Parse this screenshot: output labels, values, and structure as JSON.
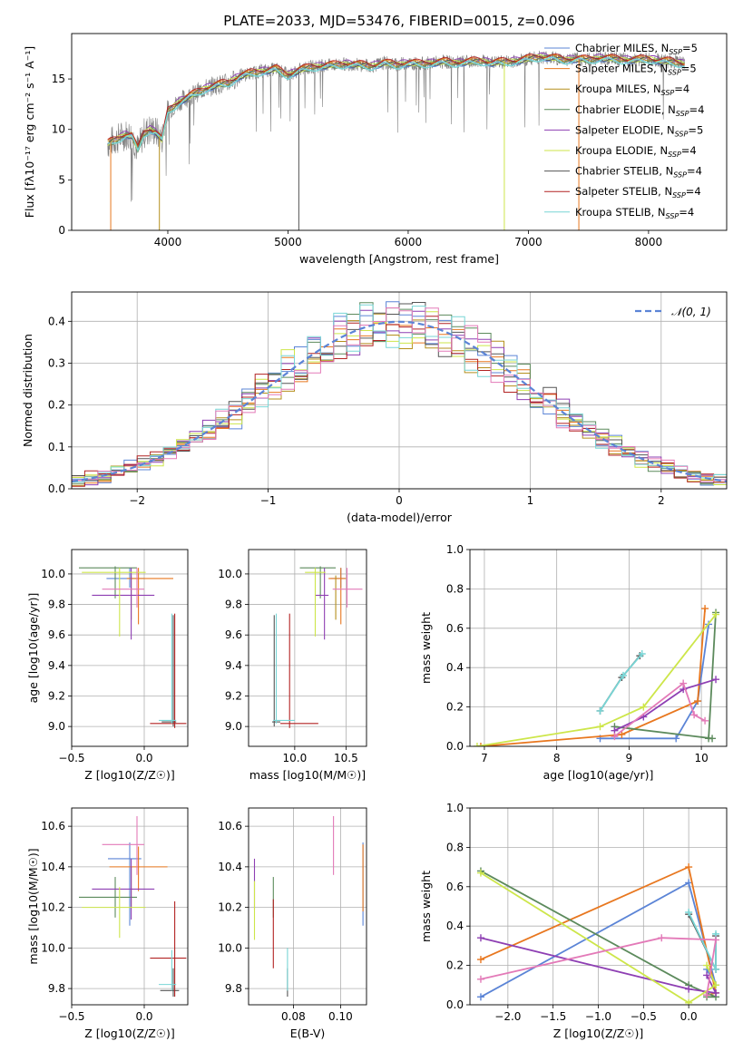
{
  "figure_title": "PLATE=2033, MJD=53476, FIBERID=0015, z=0.096",
  "colors": {
    "Chabrier MILES": "#5b84d6",
    "Salpeter MILES": "#e8771f",
    "Kroupa MILES": "#b58f1c",
    "Chabrier ELODIE": "#5c8a5c",
    "Salpeter ELODIE": "#8e3fb3",
    "Kroupa ELODIE": "#cde64a",
    "Chabrier STELIB": "#555555",
    "Salpeter STELIB": "#b22222",
    "Kroupa STELIB": "#78d6d6",
    "pink": "#e37ab8",
    "observed": "#808080",
    "normal_curve": "#5b84d6"
  },
  "chart_data": [
    {
      "id": "spectrum",
      "type": "line",
      "title": "PLATE=2033, MJD=53476, FIBERID=0015, z=0.096",
      "xlabel": "wavelength [Angstrom, rest frame]",
      "ylabel": "Flux [fλ10⁻¹⁷ erg cm⁻² s⁻¹ A⁻¹]",
      "xlim": [
        3200,
        8650
      ],
      "ylim": [
        0,
        19.5
      ],
      "xticks": [
        4000,
        5000,
        6000,
        7000,
        8000
      ],
      "yticks": [
        0,
        5,
        10,
        15
      ],
      "grid": false,
      "legend_position": "top-right",
      "legend": [
        "Chabrier MILES, N_SSP=5",
        "Salpeter MILES, N_SSP=5",
        "Kroupa MILES, N_SSP=4",
        "Chabrier ELODIE, N_SSP=4",
        "Salpeter ELODIE, N_SSP=5",
        "Kroupa ELODIE, N_SSP=4",
        "Chabrier STELIB, N_SSP=4",
        "Salpeter STELIB, N_SSP=4",
        "Kroupa STELIB, N_SSP=4"
      ],
      "observed": {
        "x": [
          3500,
          3550,
          3600,
          3650,
          3700,
          3750,
          3800,
          3850,
          3900,
          3950,
          4000,
          4100,
          4200,
          4300,
          4400,
          4500,
          4600,
          4700,
          4800,
          4900,
          5000,
          5100,
          5200,
          5300,
          5400,
          5500,
          5600,
          5700,
          5800,
          5900,
          6000,
          6100,
          6200,
          6300,
          6400,
          6500,
          6600,
          6700,
          6800,
          6900,
          7000,
          7100,
          7200,
          7300,
          7400,
          7500,
          7600,
          7700,
          7800,
          7900,
          8000,
          8100,
          8200,
          8300
        ],
        "y": [
          8.6,
          8.9,
          9.2,
          9.5,
          9.4,
          8.0,
          9.6,
          10.0,
          9.8,
          9.0,
          11.8,
          12.8,
          13.4,
          14.0,
          14.4,
          14.6,
          15.3,
          15.6,
          15.8,
          16.0,
          15.4,
          15.9,
          16.2,
          16.3,
          16.4,
          16.5,
          16.4,
          16.3,
          16.6,
          16.4,
          16.6,
          16.5,
          16.6,
          16.7,
          16.6,
          16.7,
          16.8,
          16.6,
          16.7,
          16.8,
          17.0,
          17.2,
          17.1,
          16.9,
          17.0,
          16.9,
          17.1,
          17.0,
          16.9,
          16.9,
          17.0,
          16.8,
          16.7,
          16.5
        ]
      },
      "model_range": [
        3500,
        8300
      ],
      "model_offsets": [
        -0.15,
        0.1,
        0.05,
        -0.1,
        0.15,
        0.0,
        -0.05,
        0.2,
        -0.2
      ],
      "dropouts": [
        {
          "x": 3525,
          "series": "Salpeter MILES"
        },
        {
          "x": 3930,
          "series": "Kroupa MILES"
        },
        {
          "x": 5090,
          "series": "Chabrier STELIB"
        },
        {
          "x": 6800,
          "series": "Kroupa ELODIE"
        },
        {
          "x": 7420,
          "series": "Salpeter MILES"
        }
      ]
    },
    {
      "id": "residuals",
      "type": "histogram",
      "xlabel": "(data-model)/error",
      "ylabel": "Normed distribution",
      "xlim": [
        -2.5,
        2.5
      ],
      "ylim": [
        0,
        0.47
      ],
      "xticks": [
        -2,
        -1,
        0,
        1,
        2
      ],
      "yticks": [
        0.0,
        0.1,
        0.2,
        0.3,
        0.4
      ],
      "grid": true,
      "legend_position": "top-right",
      "legend": [
        "𝒩(0, 1)"
      ],
      "normal": {
        "mean": 0,
        "sigma": 1
      },
      "bin_width": 0.1,
      "bin_start": -2.5
    },
    {
      "id": "age_vs_Z",
      "type": "errorbar",
      "xlabel": "Z [log10(Z/Z☉)]",
      "ylabel": "age [log10(age/yr)]",
      "xlim": [
        -0.5,
        0.3
      ],
      "ylim": [
        8.87,
        10.16
      ],
      "xticks": [
        -0.5,
        0.0,
        0.5
      ],
      "yticks": [
        9.0,
        9.2,
        9.4,
        9.6,
        9.8,
        10.0
      ],
      "grid": true,
      "points": [
        {
          "series": "Chabrier MILES",
          "x": -0.1,
          "y": 9.97,
          "ex": [
            0.16,
            0.1
          ],
          "ey": [
            0.06,
            0.07
          ]
        },
        {
          "series": "Salpeter MILES",
          "x": -0.04,
          "y": 9.97,
          "ex": [
            0.08,
            0.24
          ],
          "ey": [
            0.3,
            0.07
          ]
        },
        {
          "series": "Kroupa MILES",
          "x": -0.09,
          "y": 9.85,
          "ex": [
            0,
            0
          ],
          "ey": [
            0.15,
            0.14
          ]
        },
        {
          "series": "Chabrier ELODIE",
          "x": -0.2,
          "y": 10.04,
          "ex": [
            0.25,
            0.15
          ],
          "ey": [
            0.2,
            0.01
          ]
        },
        {
          "series": "Salpeter ELODIE",
          "x": -0.09,
          "y": 9.86,
          "ex": [
            0.27,
            0.16
          ],
          "ey": [
            0.29,
            0.18
          ]
        },
        {
          "series": "Kroupa ELODIE",
          "x": -0.17,
          "y": 10.01,
          "ex": [
            0.26,
            0.18
          ],
          "ey": [
            0.42,
            0.03
          ]
        },
        {
          "series": "Chabrier STELIB",
          "x": 0.2,
          "y": 9.03,
          "ex": [
            0.08,
            0.02
          ],
          "ey": [
            0.03,
            0.7
          ]
        },
        {
          "series": "Salpeter STELIB",
          "x": 0.21,
          "y": 9.02,
          "ex": [
            0.17,
            0.08
          ],
          "ey": [
            0.03,
            0.72
          ]
        },
        {
          "series": "Kroupa STELIB",
          "x": 0.19,
          "y": 9.04,
          "ex": [
            0.09,
            0.03
          ],
          "ey": [
            0.02,
            0.7
          ]
        },
        {
          "series": "pink",
          "x": -0.05,
          "y": 9.9,
          "ex": [
            0.24,
            0.05
          ],
          "ey": [
            0.12,
            0.14
          ]
        }
      ]
    },
    {
      "id": "age_vs_mass",
      "type": "errorbar",
      "xlabel": "mass [log10(M/M☉)]",
      "ylabel": "",
      "xlim": [
        9.55,
        10.7
      ],
      "ylim": [
        8.87,
        10.16
      ],
      "xticks": [
        10.0,
        10.5
      ],
      "yticks": [
        9.0,
        9.2,
        9.4,
        9.6,
        9.8,
        10.0
      ],
      "grid": true,
      "points": [
        {
          "series": "Chabrier MILES",
          "x": 10.45,
          "y": 9.97,
          "ex": [
            0.1,
            0.05
          ],
          "ey": [
            0.06,
            0.07
          ]
        },
        {
          "series": "Salpeter MILES",
          "x": 10.45,
          "y": 9.97,
          "ex": [
            0.12,
            0.05
          ],
          "ey": [
            0.3,
            0.07
          ]
        },
        {
          "series": "Kroupa MILES",
          "x": 10.4,
          "y": 9.85,
          "ex": [
            0,
            0
          ],
          "ey": [
            0.15,
            0.14
          ]
        },
        {
          "series": "Chabrier ELODIE",
          "x": 10.25,
          "y": 10.04,
          "ex": [
            0.2,
            0.15
          ],
          "ey": [
            0.2,
            0.01
          ]
        },
        {
          "series": "Salpeter ELODIE",
          "x": 10.29,
          "y": 9.86,
          "ex": [
            0.09,
            0.04
          ],
          "ey": [
            0.29,
            0.18
          ]
        },
        {
          "series": "Kroupa ELODIE",
          "x": 10.2,
          "y": 10.01,
          "ex": [
            0.1,
            0.1
          ],
          "ey": [
            0.42,
            0.03
          ]
        },
        {
          "series": "Chabrier STELIB",
          "x": 9.8,
          "y": 9.03,
          "ex": [
            0.02,
            0.06
          ],
          "ey": [
            0.03,
            0.7
          ]
        },
        {
          "series": "Salpeter STELIB",
          "x": 9.95,
          "y": 9.02,
          "ex": [
            0.09,
            0.28
          ],
          "ey": [
            0.03,
            0.72
          ]
        },
        {
          "series": "Kroupa STELIB",
          "x": 9.82,
          "y": 9.04,
          "ex": [
            0.03,
            0.18
          ],
          "ey": [
            0.02,
            0.7
          ]
        },
        {
          "series": "pink",
          "x": 10.51,
          "y": 9.9,
          "ex": [
            0.14,
            0.15
          ],
          "ey": [
            0.12,
            0.14
          ]
        }
      ]
    },
    {
      "id": "weight_vs_age",
      "type": "line",
      "xlabel": "age [log10(age/yr)]",
      "ylabel": "mass weight",
      "xlim": [
        6.8,
        10.35
      ],
      "ylim": [
        0,
        1
      ],
      "xticks": [
        7,
        8,
        9,
        10
      ],
      "yticks": [
        0.0,
        0.2,
        0.4,
        0.6,
        0.8,
        1.0
      ],
      "grid": true,
      "series": [
        {
          "name": "Chabrier MILES",
          "x": [
            8.6,
            9.65,
            9.95,
            10.1
          ],
          "y": [
            0.04,
            0.04,
            0.23,
            0.62
          ]
        },
        {
          "name": "Salpeter MILES",
          "x": [
            6.95,
            8.9,
            9.95,
            10.05
          ],
          "y": [
            0.0,
            0.06,
            0.23,
            0.7
          ]
        },
        {
          "name": "Chabrier ELODIE",
          "x": [
            8.8,
            10.15,
            10.1,
            10.2
          ],
          "y": [
            0.1,
            0.04,
            0.04,
            0.68
          ]
        },
        {
          "name": "Salpeter ELODIE",
          "x": [
            8.8,
            9.2,
            9.75,
            10.2
          ],
          "y": [
            0.08,
            0.15,
            0.29,
            0.34
          ]
        },
        {
          "name": "Kroupa ELODIE",
          "x": [
            6.9,
            8.6,
            9.2,
            10.2
          ],
          "y": [
            0.0,
            0.1,
            0.2,
            0.67
          ]
        },
        {
          "name": "Chabrier STELIB",
          "x": [
            8.6,
            8.9,
            9.15
          ],
          "y": [
            0.18,
            0.35,
            0.46
          ]
        },
        {
          "name": "Kroupa STELIB",
          "x": [
            8.6,
            8.92,
            9.18
          ],
          "y": [
            0.18,
            0.36,
            0.47
          ]
        },
        {
          "name": "pink",
          "x": [
            8.8,
            9.75,
            9.9,
            10.05
          ],
          "y": [
            0.05,
            0.32,
            0.16,
            0.13
          ]
        }
      ]
    },
    {
      "id": "mass_vs_Z",
      "type": "errorbar",
      "xlabel": "Z [log10(Z/Z☉)]",
      "ylabel": "mass [log10(M/M☉)]",
      "xlim": [
        -0.5,
        0.3
      ],
      "ylim": [
        9.72,
        10.69
      ],
      "xticks": [
        -0.5,
        0.0
      ],
      "yticks": [
        9.8,
        10.0,
        10.2,
        10.4,
        10.6
      ],
      "grid": true,
      "points": [
        {
          "series": "Chabrier MILES",
          "x": -0.1,
          "y": 10.44,
          "ex": [
            0.15,
            0.08
          ],
          "ey": [
            0.33,
            0.08
          ]
        },
        {
          "series": "Salpeter MILES",
          "x": -0.04,
          "y": 10.4,
          "ex": [
            0.2,
            0.2
          ],
          "ey": [
            0.12,
            0.1
          ]
        },
        {
          "series": "Kroupa MILES",
          "x": -0.09,
          "y": 10.3,
          "ex": [
            0,
            0
          ],
          "ey": [
            0.1,
            0.1
          ]
        },
        {
          "series": "Chabrier ELODIE",
          "x": -0.2,
          "y": 10.25,
          "ex": [
            0.25,
            0.15
          ],
          "ey": [
            0.1,
            0.1
          ]
        },
        {
          "series": "Salpeter ELODIE",
          "x": -0.09,
          "y": 10.29,
          "ex": [
            0.27,
            0.16
          ],
          "ey": [
            0.15,
            0.15
          ]
        },
        {
          "series": "Kroupa ELODIE",
          "x": -0.17,
          "y": 10.2,
          "ex": [
            0.26,
            0.18
          ],
          "ey": [
            0.15,
            0.1
          ]
        },
        {
          "series": "Chabrier STELIB",
          "x": 0.2,
          "y": 9.79,
          "ex": [
            0.09,
            0.04
          ],
          "ey": [
            0.03,
            0.11
          ]
        },
        {
          "series": "Salpeter STELIB",
          "x": 0.21,
          "y": 9.95,
          "ex": [
            0.17,
            0.08
          ],
          "ey": [
            0.19,
            0.28
          ]
        },
        {
          "series": "Kroupa STELIB",
          "x": 0.19,
          "y": 9.82,
          "ex": [
            0.09,
            0.03
          ],
          "ey": [
            0.03,
            0.17
          ]
        },
        {
          "series": "pink",
          "x": -0.05,
          "y": 10.51,
          "ex": [
            0.24,
            0.05
          ],
          "ey": [
            0.15,
            0.14
          ]
        }
      ]
    },
    {
      "id": "mass_vs_ebv",
      "type": "errorbar",
      "xlabel": "E(B-V)",
      "ylabel": "",
      "xlim": [
        0.061,
        0.111
      ],
      "ylim": [
        9.72,
        10.69
      ],
      "xticks": [
        0.08,
        0.1
      ],
      "yticks": [
        9.8,
        10.0,
        10.2,
        10.4,
        10.6
      ],
      "grid": true,
      "points": [
        {
          "series": "Chabrier MILES",
          "x": 0.1095,
          "y": 10.44,
          "ex": [
            0,
            0
          ],
          "ey": [
            0.33,
            0.08
          ]
        },
        {
          "series": "Salpeter MILES",
          "x": 0.1095,
          "y": 10.4,
          "ex": [
            0,
            0
          ],
          "ey": [
            0.22,
            0.11
          ]
        },
        {
          "series": "Chabrier ELODIE",
          "x": 0.0715,
          "y": 10.25,
          "ex": [
            0,
            0
          ],
          "ey": [
            0.1,
            0.1
          ]
        },
        {
          "series": "Salpeter ELODIE",
          "x": 0.0635,
          "y": 10.29,
          "ex": [
            0,
            0
          ],
          "ey": [
            0.1,
            0.15
          ]
        },
        {
          "series": "Kroupa ELODIE",
          "x": 0.0635,
          "y": 10.2,
          "ex": [
            0,
            0
          ],
          "ey": [
            0.16,
            0.13
          ]
        },
        {
          "series": "Chabrier STELIB",
          "x": 0.0775,
          "y": 9.79,
          "ex": [
            0,
            0
          ],
          "ey": [
            0.03,
            0.11
          ]
        },
        {
          "series": "Salpeter STELIB",
          "x": 0.0715,
          "y": 10.06,
          "ex": [
            0,
            0
          ],
          "ey": [
            0.16,
            0.18
          ]
        },
        {
          "series": "Kroupa STELIB",
          "x": 0.0775,
          "y": 9.88,
          "ex": [
            0,
            0
          ],
          "ey": [
            0.09,
            0.12
          ]
        },
        {
          "series": "pink",
          "x": 0.097,
          "y": 10.51,
          "ex": [
            0,
            0
          ],
          "ey": [
            0.15,
            0.14
          ]
        }
      ]
    },
    {
      "id": "weight_vs_Z",
      "type": "line",
      "xlabel": "Z [log10(Z/Z☉)]",
      "ylabel": "mass weight",
      "xlim": [
        -2.42,
        0.42
      ],
      "ylim": [
        0,
        1
      ],
      "xticks": [
        -2.0,
        -1.5,
        -1.0,
        -0.5,
        0.0
      ],
      "yticks": [
        0.0,
        0.2,
        0.4,
        0.6,
        0.8,
        1.0
      ],
      "grid": true,
      "series": [
        {
          "name": "Chabrier MILES",
          "x": [
            -2.3,
            0.0,
            0.3,
            0.2
          ],
          "y": [
            0.04,
            0.62,
            0.1,
            0.18
          ]
        },
        {
          "name": "Salpeter MILES",
          "x": [
            -2.3,
            0.0,
            0.3,
            0.2
          ],
          "y": [
            0.23,
            0.7,
            0.06,
            0.05
          ]
        },
        {
          "name": "Chabrier ELODIE",
          "x": [
            -2.3,
            0.0,
            0.3,
            0.2
          ],
          "y": [
            0.68,
            0.1,
            0.04,
            0.04
          ]
        },
        {
          "name": "Salpeter ELODIE",
          "x": [
            -2.3,
            0.0,
            0.3,
            0.2
          ],
          "y": [
            0.34,
            0.08,
            0.06,
            0.15
          ]
        },
        {
          "name": "Kroupa ELODIE",
          "x": [
            -2.3,
            0.0,
            0.3,
            0.2
          ],
          "y": [
            0.67,
            0.01,
            0.1,
            0.2
          ]
        },
        {
          "name": "Chabrier STELIB",
          "x": [
            0.0,
            0.3,
            0.3
          ],
          "y": [
            0.46,
            0.18,
            0.35
          ]
        },
        {
          "name": "Kroupa STELIB",
          "x": [
            0.0,
            0.3,
            0.3
          ],
          "y": [
            0.47,
            0.18,
            0.36
          ]
        },
        {
          "name": "pink",
          "x": [
            -2.3,
            -0.3,
            0.3,
            0.2
          ],
          "y": [
            0.13,
            0.34,
            0.33,
            0.05
          ]
        }
      ]
    }
  ]
}
